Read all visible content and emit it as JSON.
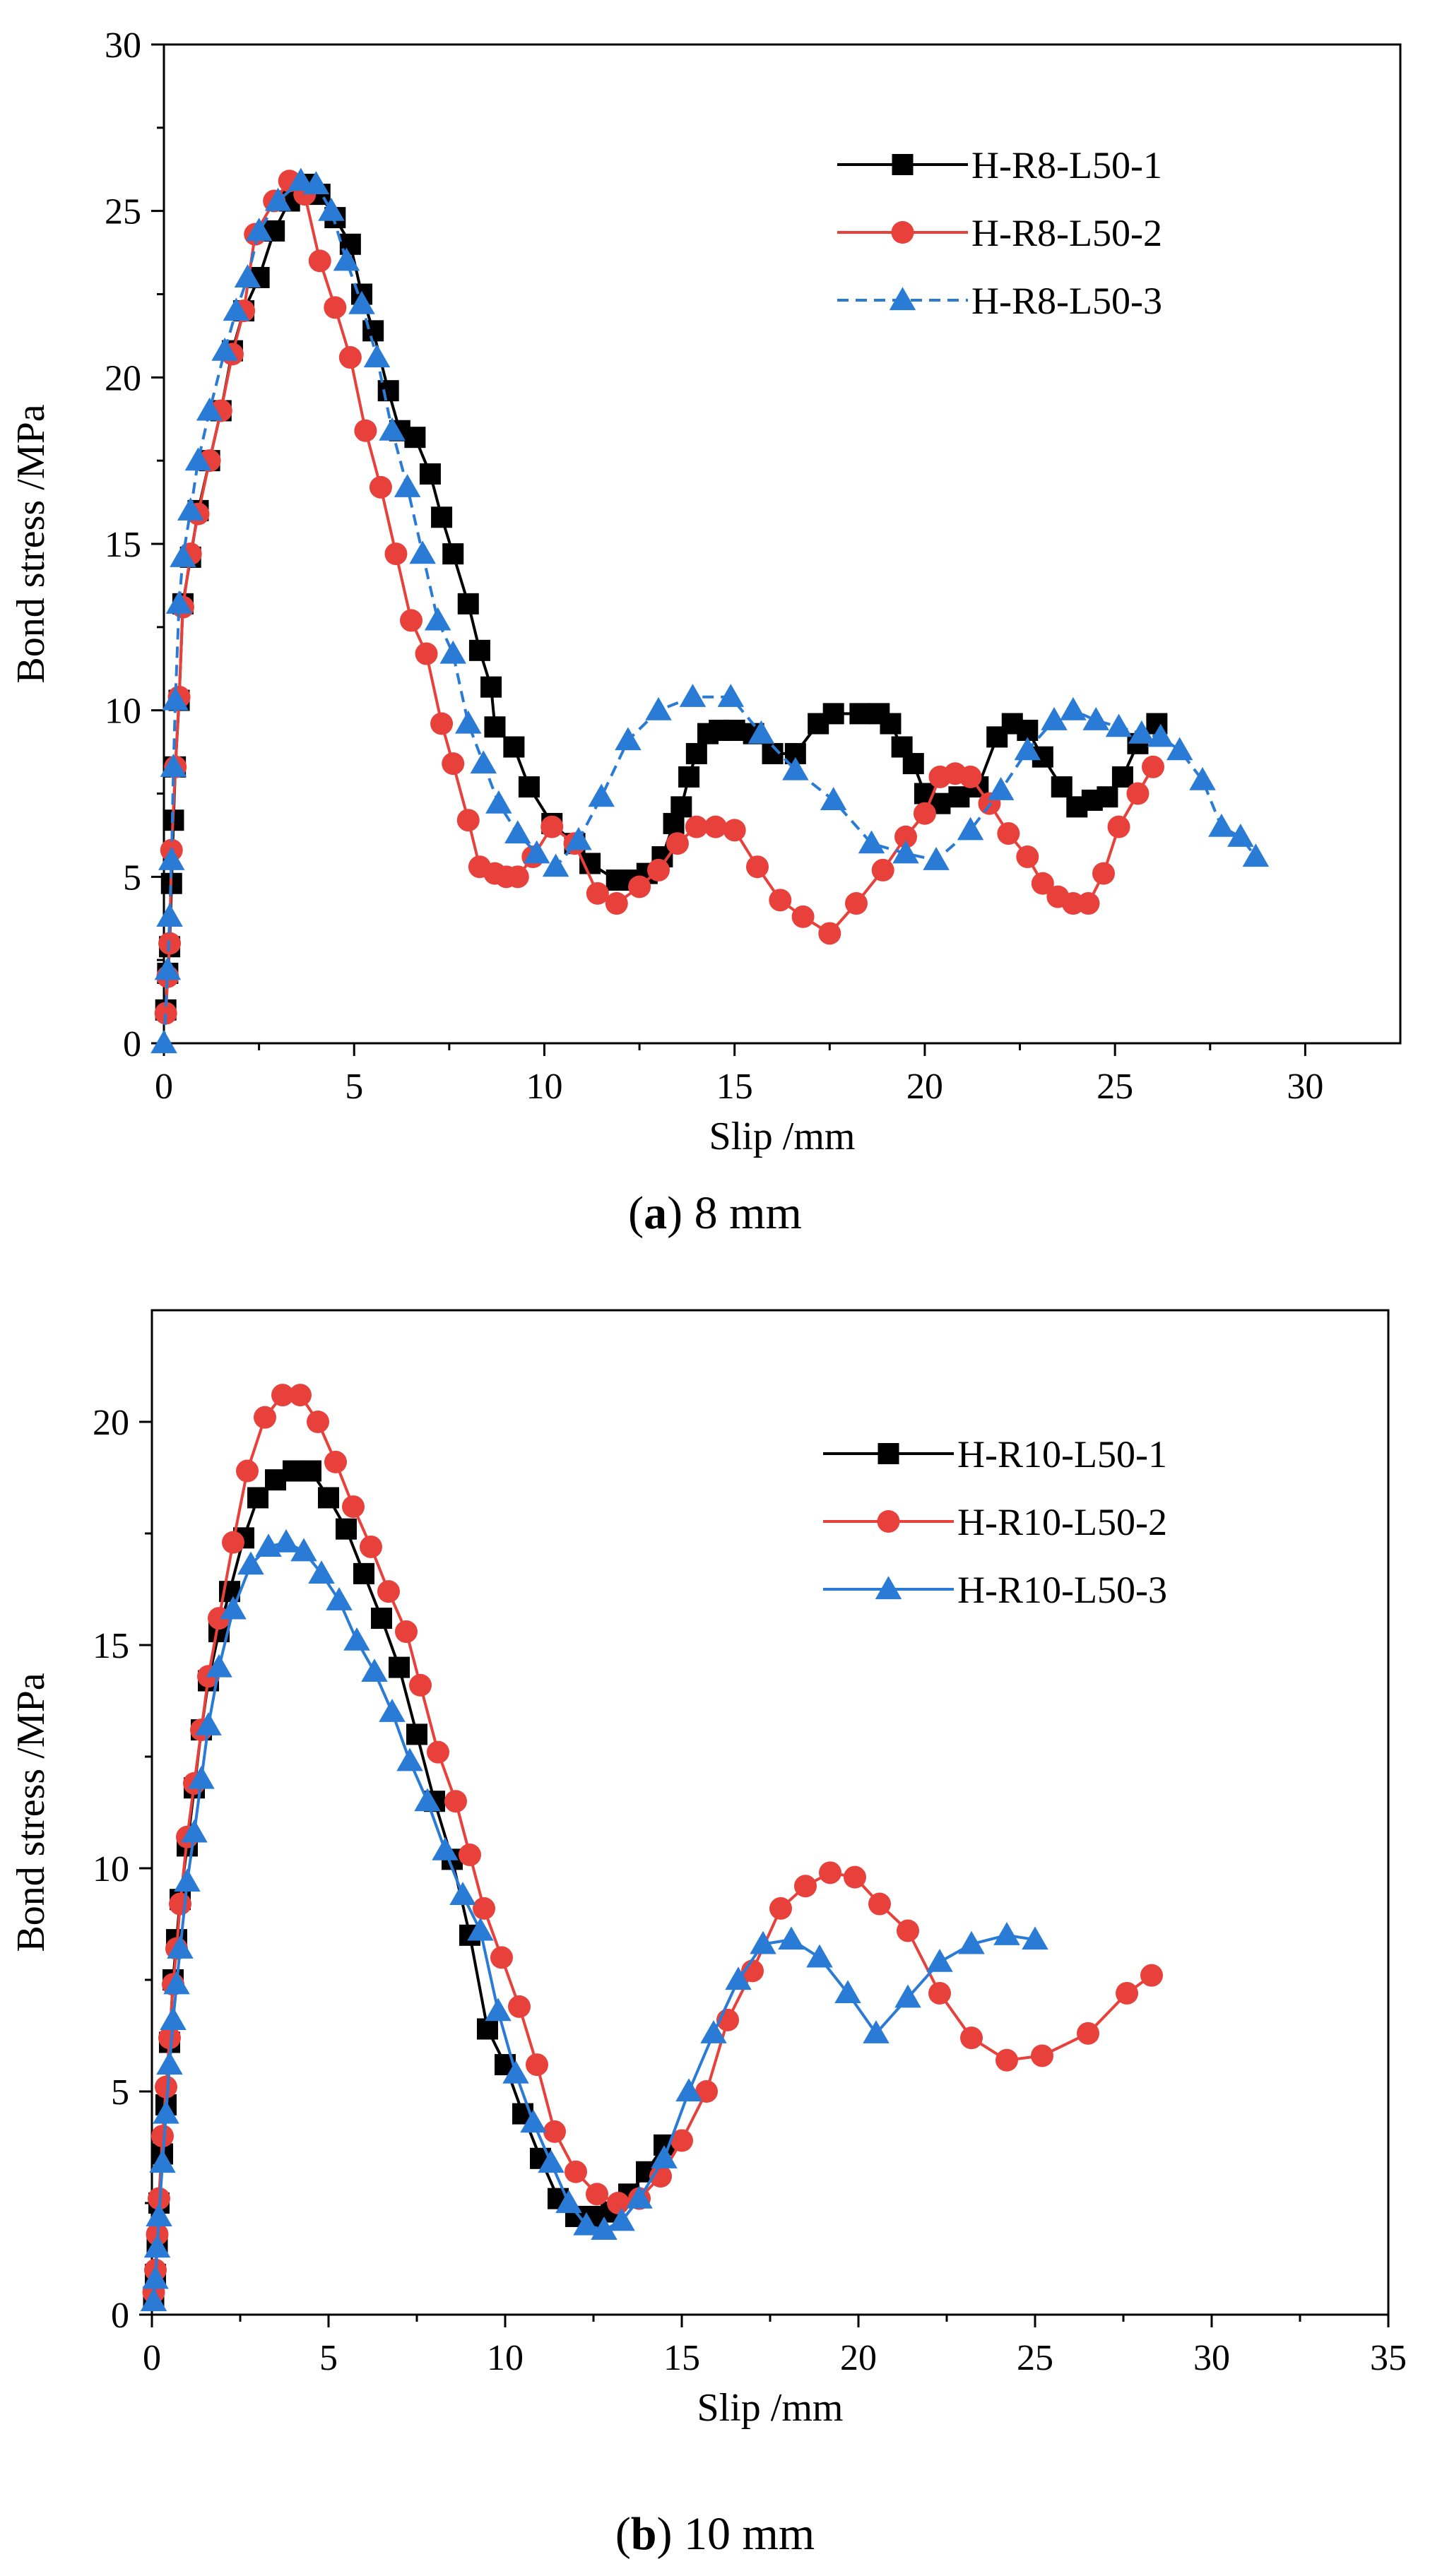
{
  "figure": {
    "caption_a": {
      "letter": "a",
      "text": " 8 mm"
    },
    "caption_b": {
      "letter": "b",
      "text": " 10 mm"
    }
  },
  "chart_data": [
    {
      "id": "a",
      "type": "line",
      "title": "",
      "xlabel": "Slip /mm",
      "ylabel": "Bond stress /MPa",
      "xlim": [
        0,
        32.5
      ],
      "ylim": [
        0,
        30
      ],
      "xticks": [
        0,
        5,
        10,
        15,
        20,
        25,
        30
      ],
      "yticks": [
        0,
        5,
        10,
        15,
        20,
        25,
        30
      ],
      "legend_position": "top-right",
      "series": [
        {
          "name": "H-R8-L50-1",
          "color": "#000000",
          "marker": "square",
          "dash": false,
          "x": [
            0.05,
            0.1,
            0.15,
            0.2,
            0.25,
            0.3,
            0.4,
            0.5,
            0.7,
            0.9,
            1.2,
            1.5,
            1.8,
            2.1,
            2.5,
            2.9,
            3.3,
            3.7,
            4.1,
            4.5,
            4.9,
            5.2,
            5.5,
            5.9,
            6.2,
            6.6,
            7.0,
            7.3,
            7.6,
            8.0,
            8.3,
            8.6,
            8.7,
            9.2,
            9.6,
            10.2,
            10.8,
            11.2,
            11.9,
            12.4,
            12.7,
            13.1,
            13.4,
            13.6,
            13.8,
            14.0,
            14.3,
            14.6,
            15.0,
            15.5,
            16.0,
            16.6,
            17.2,
            17.6,
            18.3,
            18.8,
            19.1,
            19.4,
            19.7,
            20.0,
            20.4,
            20.9,
            21.4,
            21.9,
            22.3,
            22.7,
            23.1,
            23.6,
            24.0,
            24.4,
            24.8,
            25.2,
            25.6,
            26.1
          ],
          "y": [
            1.0,
            2.1,
            2.9,
            4.8,
            6.7,
            8.3,
            10.3,
            13.2,
            14.6,
            16.0,
            17.5,
            19.0,
            20.8,
            22.0,
            23.0,
            24.4,
            25.3,
            25.8,
            25.5,
            24.8,
            24.0,
            22.5,
            21.4,
            19.6,
            18.4,
            18.2,
            17.1,
            15.8,
            14.7,
            13.2,
            11.8,
            10.7,
            9.5,
            8.9,
            7.7,
            6.6,
            6.0,
            5.4,
            4.9,
            4.9,
            5.1,
            5.6,
            6.6,
            7.1,
            8.0,
            8.7,
            9.3,
            9.4,
            9.4,
            9.3,
            8.7,
            8.7,
            9.6,
            9.9,
            9.9,
            9.9,
            9.6,
            8.9,
            8.4,
            7.5,
            7.2,
            7.4,
            7.7,
            9.2,
            9.6,
            9.4,
            8.6,
            7.7,
            7.1,
            7.3,
            7.4,
            8.0,
            9.0,
            9.6
          ]
        },
        {
          "name": "H-R8-L50-2",
          "color": "#e8413b",
          "marker": "circle",
          "dash": false,
          "x": [
            0.05,
            0.1,
            0.15,
            0.2,
            0.3,
            0.4,
            0.5,
            0.7,
            0.9,
            1.2,
            1.5,
            1.8,
            2.1,
            2.4,
            2.9,
            3.3,
            3.7,
            4.1,
            4.5,
            4.9,
            5.3,
            5.7,
            6.1,
            6.5,
            6.9,
            7.3,
            7.6,
            8.0,
            8.3,
            8.7,
            9.0,
            9.3,
            9.7,
            10.2,
            10.8,
            11.4,
            11.9,
            12.5,
            13.0,
            13.5,
            14.0,
            14.5,
            15.0,
            15.6,
            16.2,
            16.8,
            17.5,
            18.2,
            18.9,
            19.5,
            20.0,
            20.4,
            20.8,
            21.2,
            21.7,
            22.2,
            22.7,
            23.1,
            23.5,
            23.9,
            24.3,
            24.7,
            25.1,
            25.6,
            26.0
          ],
          "y": [
            0.9,
            2.0,
            3.0,
            5.8,
            8.3,
            10.4,
            13.1,
            14.7,
            15.9,
            17.5,
            19.0,
            20.7,
            22.0,
            24.3,
            25.3,
            25.9,
            25.5,
            23.5,
            22.1,
            20.6,
            18.4,
            16.7,
            14.7,
            12.7,
            11.7,
            9.6,
            8.4,
            6.7,
            5.3,
            5.1,
            5.0,
            5.0,
            5.6,
            6.5,
            6.0,
            4.5,
            4.2,
            4.7,
            5.2,
            6.0,
            6.5,
            6.5,
            6.4,
            5.3,
            4.3,
            3.8,
            3.3,
            4.2,
            5.2,
            6.2,
            6.9,
            8.0,
            8.1,
            8.0,
            7.2,
            6.3,
            5.6,
            4.8,
            4.4,
            4.2,
            4.2,
            5.1,
            6.5,
            7.5,
            8.3
          ]
        },
        {
          "name": "H-R8-L50-3",
          "color": "#2a7bd6",
          "marker": "triangle",
          "dash": true,
          "x": [
            0.0,
            0.1,
            0.15,
            0.2,
            0.25,
            0.3,
            0.4,
            0.5,
            0.7,
            0.9,
            1.2,
            1.6,
            1.9,
            2.2,
            2.5,
            3.0,
            3.6,
            4.0,
            4.4,
            4.8,
            5.2,
            5.6,
            6.0,
            6.4,
            6.8,
            7.2,
            7.6,
            8.0,
            8.4,
            8.8,
            9.3,
            9.8,
            10.3,
            10.9,
            11.5,
            12.2,
            13.0,
            13.9,
            14.9,
            15.7,
            16.6,
            17.6,
            18.6,
            19.5,
            20.3,
            21.2,
            22.0,
            22.7,
            23.4,
            23.9,
            24.5,
            25.1,
            25.7,
            26.2,
            26.7,
            27.3,
            27.8,
            28.3,
            28.7
          ],
          "y": [
            0.0,
            2.2,
            3.8,
            5.5,
            8.3,
            10.3,
            13.2,
            14.6,
            16.0,
            17.5,
            19.0,
            20.8,
            22.0,
            23.0,
            24.4,
            25.3,
            25.9,
            25.8,
            25.0,
            23.5,
            22.2,
            20.6,
            18.4,
            16.7,
            14.7,
            12.7,
            11.7,
            9.6,
            8.4,
            7.2,
            6.3,
            5.7,
            5.3,
            6.1,
            7.4,
            9.1,
            10.0,
            10.4,
            10.4,
            9.3,
            8.2,
            7.3,
            6.0,
            5.7,
            5.5,
            6.4,
            7.6,
            8.8,
            9.7,
            10.0,
            9.7,
            9.5,
            9.3,
            9.2,
            8.8,
            7.9,
            6.5,
            6.2,
            5.6
          ]
        }
      ]
    },
    {
      "id": "b",
      "type": "line",
      "title": "",
      "xlabel": "Slip /mm",
      "ylabel": "Bond stress /MPa",
      "xlim": [
        0,
        35
      ],
      "ylim": [
        0,
        22.5
      ],
      "xticks": [
        0,
        5,
        10,
        15,
        20,
        25,
        30,
        35
      ],
      "yticks": [
        0,
        5,
        10,
        15,
        20
      ],
      "legend_position": "top-right",
      "series": [
        {
          "name": "H-R10-L50-1",
          "color": "#000000",
          "marker": "square",
          "dash": false,
          "x": [
            0.05,
            0.1,
            0.15,
            0.2,
            0.3,
            0.4,
            0.5,
            0.6,
            0.7,
            0.8,
            1.0,
            1.2,
            1.4,
            1.6,
            1.9,
            2.2,
            2.6,
            3.0,
            3.5,
            4.0,
            4.5,
            5.0,
            5.5,
            6.0,
            6.5,
            7.0,
            7.5,
            8.0,
            8.5,
            9.0,
            9.5,
            10.0,
            10.5,
            11.0,
            11.5,
            12.0,
            12.5,
            13.0,
            13.5,
            14.0,
            14.5
          ],
          "y": [
            0.4,
            0.9,
            1.6,
            2.5,
            3.6,
            4.7,
            6.1,
            7.5,
            8.4,
            9.3,
            10.5,
            11.8,
            13.1,
            14.2,
            15.3,
            16.2,
            17.4,
            18.3,
            18.7,
            18.9,
            18.9,
            18.3,
            17.6,
            16.6,
            15.6,
            14.5,
            13.0,
            11.5,
            10.2,
            8.5,
            6.4,
            5.6,
            4.5,
            3.5,
            2.6,
            2.2,
            2.2,
            2.3,
            2.7,
            3.2,
            3.8
          ]
        },
        {
          "name": "H-R10-L50-2",
          "color": "#e8413b",
          "marker": "circle",
          "dash": false,
          "x": [
            0.05,
            0.1,
            0.15,
            0.2,
            0.3,
            0.4,
            0.5,
            0.6,
            0.7,
            0.8,
            1.0,
            1.2,
            1.4,
            1.6,
            1.9,
            2.3,
            2.7,
            3.2,
            3.7,
            4.2,
            4.7,
            5.2,
            5.7,
            6.2,
            6.7,
            7.2,
            7.6,
            8.1,
            8.6,
            9.0,
            9.4,
            9.9,
            10.4,
            10.9,
            11.4,
            12.0,
            12.6,
            13.2,
            13.8,
            14.4,
            15.0,
            15.7,
            16.3,
            17.0,
            17.8,
            18.5,
            19.2,
            19.9,
            20.6,
            21.4,
            22.3,
            23.2,
            24.2,
            25.2,
            26.5,
            27.6,
            28.3
          ],
          "y": [
            0.5,
            1.0,
            1.8,
            2.6,
            4.0,
            5.1,
            6.2,
            7.4,
            8.2,
            9.2,
            10.7,
            11.9,
            13.1,
            14.3,
            15.6,
            17.3,
            18.9,
            20.1,
            20.6,
            20.6,
            20.0,
            19.1,
            18.1,
            17.2,
            16.2,
            15.3,
            14.1,
            12.6,
            11.5,
            10.3,
            9.1,
            8.0,
            6.9,
            5.6,
            4.1,
            3.2,
            2.7,
            2.5,
            2.6,
            3.1,
            3.9,
            5.0,
            6.6,
            7.7,
            9.1,
            9.6,
            9.9,
            9.8,
            9.2,
            8.6,
            7.2,
            6.2,
            5.7,
            5.8,
            6.3,
            7.2,
            7.6
          ]
        },
        {
          "name": "H-R10-L50-3",
          "color": "#2a7bd6",
          "marker": "triangle",
          "dash": false,
          "x": [
            0.05,
            0.1,
            0.15,
            0.2,
            0.3,
            0.4,
            0.5,
            0.6,
            0.7,
            0.8,
            1.0,
            1.2,
            1.4,
            1.6,
            1.9,
            2.3,
            2.8,
            3.3,
            3.8,
            4.3,
            4.8,
            5.3,
            5.8,
            6.3,
            6.8,
            7.3,
            7.8,
            8.3,
            8.8,
            9.3,
            9.8,
            10.3,
            10.8,
            11.3,
            11.8,
            12.3,
            12.8,
            13.3,
            13.8,
            14.5,
            15.2,
            15.9,
            16.6,
            17.3,
            18.1,
            18.9,
            19.7,
            20.5,
            21.4,
            22.3,
            23.2,
            24.2,
            25.0
          ],
          "y": [
            0.3,
            0.8,
            1.5,
            2.2,
            3.4,
            4.5,
            5.6,
            6.6,
            7.4,
            8.2,
            9.7,
            10.8,
            12.0,
            13.2,
            14.5,
            15.8,
            16.8,
            17.2,
            17.3,
            17.1,
            16.6,
            16.0,
            15.1,
            14.4,
            13.5,
            12.4,
            11.5,
            10.4,
            9.4,
            8.6,
            6.8,
            5.4,
            4.3,
            3.4,
            2.5,
            2.0,
            1.9,
            2.1,
            2.6,
            3.5,
            5.0,
            6.3,
            7.5,
            8.3,
            8.4,
            8.0,
            7.2,
            6.3,
            7.1,
            7.9,
            8.3,
            8.5,
            8.4
          ]
        }
      ]
    }
  ]
}
